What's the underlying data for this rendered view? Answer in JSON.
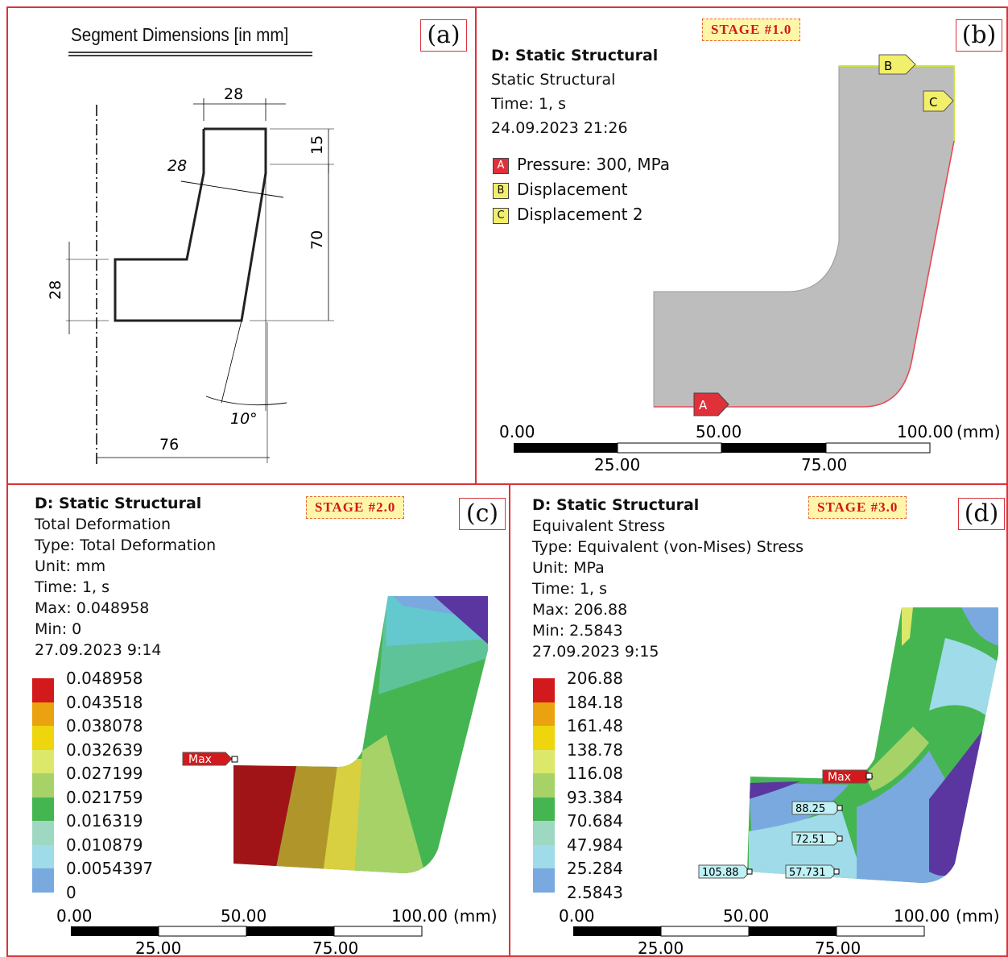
{
  "panel_a": {
    "label": "(a)",
    "title": "Segment Dimensions [in mm]",
    "dims": {
      "top_width": "28",
      "top_height": "15",
      "slant_width": "28",
      "slant_height": "70",
      "left_height": "28",
      "angle": "10°",
      "base_width": "76"
    }
  },
  "panel_b": {
    "label": "(b)",
    "stage": "STAGE #1.0",
    "info": [
      "D: Static Structural",
      "Static Structural",
      "Time: 1, s",
      "24.09.2023 21:26"
    ],
    "legend": [
      {
        "key": "A",
        "text": "Pressure: 300, MPa",
        "color": "#e0303a"
      },
      {
        "key": "B",
        "text": "Displacement",
        "color": "#f2ef6a"
      },
      {
        "key": "C",
        "text": "Displacement 2",
        "color": "#f2ef6a"
      }
    ],
    "markers": [
      "A",
      "B",
      "C"
    ],
    "scale": {
      "top": [
        "0.00",
        "50.00",
        "100.00"
      ],
      "bottom": [
        "25.00",
        "75.00"
      ],
      "unit": "(mm)"
    }
  },
  "panel_c": {
    "label": "(c)",
    "stage": "STAGE #2.0",
    "info": [
      "D: Static Structural",
      "Total Deformation",
      "Type: Total Deformation",
      "Unit: mm",
      "Time: 1, s",
      "Max: 0.048958",
      "Min: 0",
      "27.09.2023 9:14"
    ],
    "legend_values": [
      "0.048958",
      "0.043518",
      "0.038078",
      "0.032639",
      "0.027199",
      "0.021759",
      "0.016319",
      "0.010879",
      "0.0054397",
      "0"
    ],
    "max_label": "Max",
    "scale": {
      "top": [
        "0.00",
        "50.00",
        "100.00"
      ],
      "bottom": [
        "25.00",
        "75.00"
      ],
      "unit": "(mm)"
    }
  },
  "panel_d": {
    "label": "(d)",
    "stage": "STAGE #3.0",
    "info": [
      "D: Static Structural",
      "Equivalent Stress",
      "Type: Equivalent (von-Mises) Stress",
      "Unit: MPa",
      "Time: 1, s",
      "Max: 206.88",
      "Min: 2.5843",
      "27.09.2023 9:15"
    ],
    "legend_values": [
      "206.88",
      "184.18",
      "161.48",
      "138.78",
      "116.08",
      "93.384",
      "70.684",
      "47.984",
      "25.284",
      "2.5843"
    ],
    "max_label": "Max",
    "probes": [
      "88.25",
      "72.51",
      "105.88",
      "57.731"
    ],
    "scale": {
      "top": [
        "0.00",
        "50.00",
        "100.00"
      ],
      "bottom": [
        "25.00",
        "75.00"
      ],
      "unit": "(mm)"
    }
  },
  "colors": {
    "legend": [
      "#d21a1c",
      "#eba210",
      "#eed50e",
      "#dbe86a",
      "#a6d268",
      "#45b552",
      "#9fd8c2",
      "#9fdbe8",
      "#7aa9df",
      "#5b36a0"
    ]
  }
}
